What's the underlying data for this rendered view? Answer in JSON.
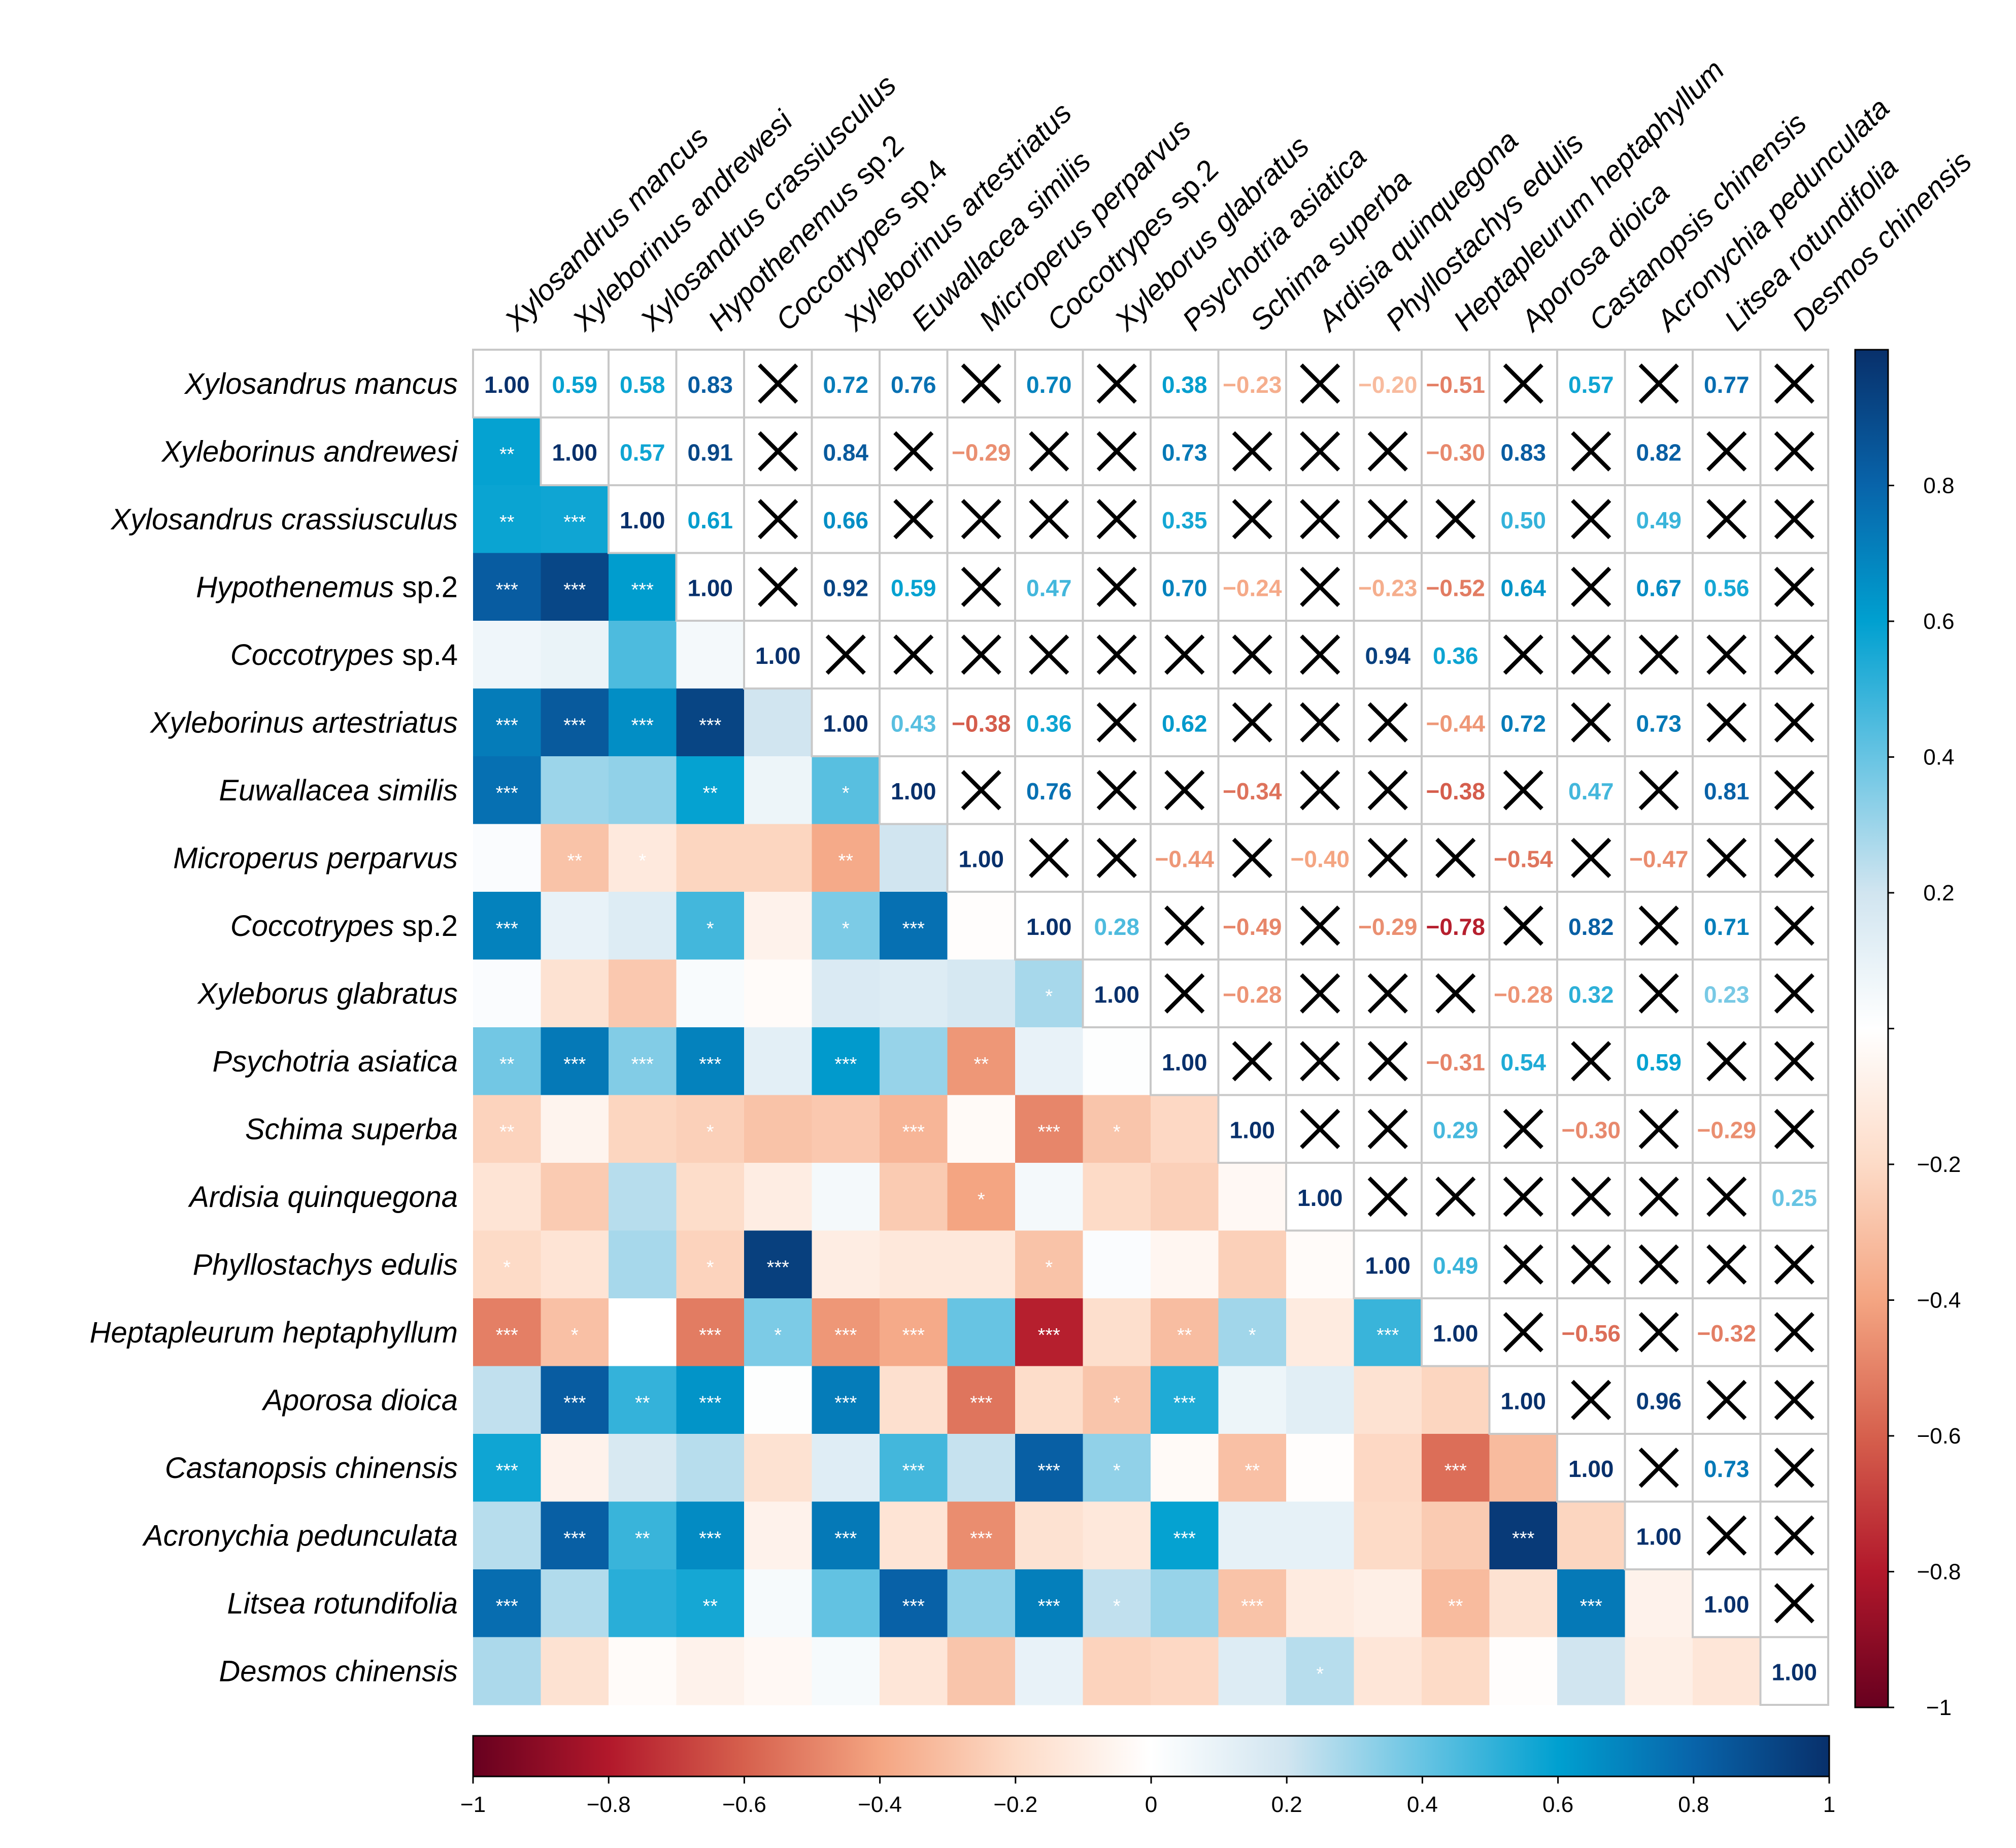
{
  "chart_data": {
    "type": "heatmap",
    "title": "",
    "species": [
      {
        "name": "Xylosandrus mancus",
        "upright": ""
      },
      {
        "name": "Xyleborinus andrewesi",
        "upright": ""
      },
      {
        "name": "Xylosandrus crassiusculus",
        "upright": ""
      },
      {
        "name": "Hypothenemus",
        "upright": " sp.2"
      },
      {
        "name": "Coccotrypes",
        "upright": " sp.4"
      },
      {
        "name": "Xyleborinus artestriatus",
        "upright": ""
      },
      {
        "name": "Euwallacea similis",
        "upright": ""
      },
      {
        "name": "Microperus perparvus",
        "upright": ""
      },
      {
        "name": "Coccotrypes",
        "upright": " sp.2"
      },
      {
        "name": "Xyleborus glabratus",
        "upright": ""
      },
      {
        "name": "Psychotria asiatica",
        "upright": ""
      },
      {
        "name": "Schima superba",
        "upright": ""
      },
      {
        "name": "Ardisia quinquegona",
        "upright": ""
      },
      {
        "name": "Phyllostachys edulis",
        "upright": ""
      },
      {
        "name": "Heptapleurum heptaphyllum",
        "upright": ""
      },
      {
        "name": "Aporosa dioica",
        "upright": ""
      },
      {
        "name": "Castanopsis chinensis",
        "upright": ""
      },
      {
        "name": "Acronychia pedunculata",
        "upright": ""
      },
      {
        "name": "Litsea rotundifolia",
        "upright": ""
      },
      {
        "name": "Desmos chinensis",
        "upright": ""
      }
    ],
    "upper_triangle": [
      [
        null,
        0.59,
        0.58,
        0.83,
        null,
        0.72,
        0.76,
        null,
        0.7,
        null,
        0.38,
        -0.23,
        null,
        -0.2,
        -0.51,
        null,
        0.57,
        null,
        0.77,
        null
      ],
      [
        null,
        null,
        0.57,
        0.91,
        null,
        0.84,
        null,
        -0.29,
        null,
        null,
        0.73,
        null,
        null,
        null,
        -0.3,
        0.83,
        null,
        0.82,
        null,
        null
      ],
      [
        null,
        null,
        null,
        0.61,
        null,
        0.66,
        null,
        null,
        null,
        null,
        0.35,
        null,
        null,
        null,
        null,
        0.5,
        null,
        0.49,
        null,
        null
      ],
      [
        null,
        null,
        null,
        null,
        null,
        0.92,
        0.59,
        null,
        0.47,
        null,
        0.7,
        -0.24,
        null,
        -0.23,
        -0.52,
        0.64,
        null,
        0.67,
        0.56,
        null
      ],
      [
        null,
        null,
        null,
        null,
        null,
        null,
        null,
        null,
        null,
        null,
        null,
        null,
        null,
        0.94,
        0.36,
        null,
        null,
        null,
        null,
        null
      ],
      [
        null,
        null,
        null,
        null,
        null,
        null,
        0.43,
        -0.38,
        0.36,
        null,
        0.62,
        null,
        null,
        null,
        -0.44,
        0.72,
        null,
        0.73,
        null,
        null
      ],
      [
        null,
        null,
        null,
        null,
        null,
        null,
        null,
        null,
        0.76,
        null,
        null,
        -0.34,
        null,
        null,
        -0.38,
        null,
        0.47,
        null,
        0.81,
        null
      ],
      [
        null,
        null,
        null,
        null,
        null,
        null,
        null,
        null,
        null,
        null,
        -0.44,
        null,
        -0.4,
        null,
        null,
        -0.54,
        null,
        -0.47,
        null,
        null
      ],
      [
        null,
        null,
        null,
        null,
        null,
        null,
        null,
        null,
        null,
        0.28,
        null,
        -0.49,
        null,
        -0.29,
        -0.78,
        null,
        0.82,
        null,
        0.71,
        null
      ],
      [
        null,
        null,
        null,
        null,
        null,
        null,
        null,
        null,
        null,
        null,
        null,
        -0.28,
        null,
        null,
        null,
        -0.28,
        0.32,
        null,
        0.23,
        null
      ],
      [
        null,
        null,
        null,
        null,
        null,
        null,
        null,
        null,
        null,
        null,
        null,
        null,
        null,
        null,
        -0.31,
        0.54,
        null,
        0.59,
        null,
        null
      ],
      [
        null,
        null,
        null,
        null,
        null,
        null,
        null,
        null,
        null,
        null,
        null,
        null,
        null,
        null,
        0.29,
        null,
        -0.3,
        null,
        -0.29,
        null
      ],
      [
        null,
        null,
        null,
        null,
        null,
        null,
        null,
        null,
        null,
        null,
        null,
        null,
        null,
        null,
        null,
        null,
        null,
        null,
        null,
        0.25
      ],
      [
        null,
        null,
        null,
        null,
        null,
        null,
        null,
        null,
        null,
        null,
        null,
        null,
        null,
        null,
        0.49,
        null,
        null,
        null,
        null,
        null
      ],
      [
        null,
        null,
        null,
        null,
        null,
        null,
        null,
        null,
        null,
        null,
        null,
        null,
        null,
        null,
        null,
        null,
        -0.56,
        null,
        -0.32,
        null
      ],
      [
        null,
        null,
        null,
        null,
        null,
        null,
        null,
        null,
        null,
        null,
        null,
        null,
        null,
        null,
        null,
        null,
        null,
        0.96,
        null,
        null
      ],
      [
        null,
        null,
        null,
        null,
        null,
        null,
        null,
        null,
        null,
        null,
        null,
        null,
        null,
        null,
        null,
        null,
        null,
        null,
        0.73,
        null
      ],
      [
        null,
        null,
        null,
        null,
        null,
        null,
        null,
        null,
        null,
        null,
        null,
        null,
        null,
        null,
        null,
        null,
        null,
        null,
        null,
        null
      ],
      [
        null,
        null,
        null,
        null,
        null,
        null,
        null,
        null,
        null,
        null,
        null,
        null,
        null,
        null,
        null,
        null,
        null,
        null,
        null,
        null
      ],
      [
        null,
        null,
        null,
        null,
        null,
        null,
        null,
        null,
        null,
        null,
        null,
        null,
        null,
        null,
        null,
        null,
        null,
        null,
        null,
        null
      ]
    ],
    "diagonal_label": "1.00",
    "lower_triangle": [
      [],
      [
        0.59
      ],
      [
        0.58,
        0.57
      ],
      [
        0.83,
        0.91,
        0.61
      ],
      [
        0.07,
        0.09,
        0.45,
        0.05
      ],
      [
        0.72,
        0.84,
        0.66,
        0.92,
        0.2
      ],
      [
        0.76,
        0.3,
        0.32,
        0.59,
        0.08,
        0.43
      ],
      [
        0.02,
        -0.29,
        -0.12,
        -0.22,
        -0.22,
        -0.38,
        0.2
      ],
      [
        0.7,
        0.1,
        0.15,
        0.47,
        -0.07,
        0.36,
        0.76,
        -0.01
      ],
      [
        0.02,
        -0.16,
        -0.27,
        0.03,
        -0.02,
        0.16,
        0.15,
        0.18,
        0.28
      ],
      [
        0.38,
        0.73,
        0.35,
        0.7,
        0.12,
        0.62,
        0.31,
        -0.44,
        0.1,
        0.01
      ],
      [
        -0.23,
        -0.06,
        -0.22,
        -0.24,
        -0.29,
        -0.27,
        -0.34,
        -0.03,
        -0.49,
        -0.28,
        -0.21
      ],
      [
        -0.15,
        -0.26,
        0.25,
        -0.19,
        -0.1,
        0.05,
        -0.26,
        -0.4,
        0.05,
        -0.2,
        -0.24,
        -0.04
      ],
      [
        -0.2,
        -0.15,
        0.28,
        -0.23,
        0.94,
        -0.1,
        -0.13,
        -0.13,
        -0.29,
        0.02,
        -0.05,
        -0.24,
        -0.02
      ],
      [
        -0.51,
        -0.3,
        0.0,
        -0.52,
        0.36,
        -0.44,
        -0.38,
        0.4,
        -0.78,
        -0.18,
        -0.31,
        0.29,
        -0.11,
        0.49
      ],
      [
        0.23,
        0.83,
        0.5,
        0.64,
        0.01,
        0.72,
        -0.17,
        -0.54,
        -0.19,
        -0.28,
        0.54,
        0.08,
        0.13,
        -0.16,
        -0.22
      ],
      [
        0.57,
        -0.07,
        0.17,
        0.25,
        -0.16,
        0.14,
        0.47,
        0.22,
        0.82,
        0.32,
        -0.03,
        -0.3,
        -0.01,
        -0.21,
        -0.56,
        -0.32
      ],
      [
        0.25,
        0.82,
        0.49,
        0.67,
        -0.07,
        0.73,
        -0.15,
        -0.47,
        -0.16,
        -0.13,
        0.59,
        0.11,
        0.11,
        -0.2,
        -0.26,
        0.96,
        -0.22
      ],
      [
        0.77,
        0.26,
        0.52,
        0.56,
        0.04,
        0.41,
        0.81,
        0.32,
        0.71,
        0.23,
        0.31,
        -0.29,
        -0.11,
        -0.09,
        -0.32,
        -0.16,
        0.73,
        -0.07
      ],
      [
        0.27,
        -0.16,
        -0.02,
        -0.07,
        -0.04,
        0.04,
        -0.14,
        -0.28,
        0.1,
        -0.23,
        -0.21,
        0.15,
        0.25,
        -0.14,
        -0.2,
        -0.01,
        0.2,
        -0.09,
        -0.14
      ]
    ],
    "significance": [
      [],
      [
        "**"
      ],
      [
        "**",
        "***"
      ],
      [
        "***",
        "***",
        "***"
      ],
      [
        "",
        "",
        "",
        ""
      ],
      [
        "***",
        "***",
        "***",
        "***",
        ""
      ],
      [
        "***",
        "",
        "",
        "**",
        "",
        "*"
      ],
      [
        "",
        "**",
        "*",
        "",
        "",
        "**",
        ""
      ],
      [
        "***",
        "",
        "",
        "*",
        "",
        "*",
        "***",
        ""
      ],
      [
        "",
        "",
        "",
        "",
        "",
        "",
        "",
        "",
        "*"
      ],
      [
        "**",
        "***",
        "***",
        "***",
        "",
        "***",
        "",
        "**",
        "",
        ""
      ],
      [
        "**",
        "",
        "",
        "*",
        "",
        "",
        "***",
        "",
        "***",
        "*",
        ""
      ],
      [
        "",
        "",
        "",
        "",
        "",
        "",
        "",
        "*",
        "",
        "",
        "",
        ""
      ],
      [
        "*",
        "",
        "",
        "*",
        "***",
        "",
        "",
        "",
        "*",
        "",
        "",
        "",
        ""
      ],
      [
        "***",
        "*",
        "",
        "***",
        "*",
        "***",
        "***",
        "",
        "***",
        "",
        "**",
        "*",
        "",
        "***"
      ],
      [
        "",
        "***",
        "**",
        "***",
        "",
        "***",
        "",
        "***",
        "",
        "*",
        "***",
        "",
        "",
        "",
        ""
      ],
      [
        "***",
        "",
        "",
        "",
        "",
        "",
        "***",
        "",
        "***",
        "*",
        "",
        "**",
        "",
        "",
        "***",
        ""
      ],
      [
        "",
        "***",
        "**",
        "***",
        "",
        "***",
        "",
        "***",
        "",
        "",
        "***",
        "",
        "",
        "",
        "",
        "***",
        ""
      ],
      [
        "***",
        "",
        "",
        "**",
        "",
        "",
        "***",
        "",
        "***",
        "*",
        "",
        "***",
        "",
        "",
        "**",
        "",
        "***",
        ""
      ],
      [
        "",
        "",
        "",
        "",
        "",
        "",
        "",
        "",
        "",
        "",
        "",
        "",
        "*",
        "",
        "",
        "",
        "",
        "",
        ""
      ]
    ],
    "colorbar_right": {
      "ticks": [
        "0.8",
        "0.6",
        "0.4",
        "0.2",
        "−0.2",
        "−0.4",
        "−0.6",
        "−0.8",
        "−1"
      ],
      "tick_values": [
        0.8,
        0.6,
        0.4,
        0.2,
        -0.2,
        -0.4,
        -0.6,
        -0.8,
        -1
      ]
    },
    "colorbar_bottom": {
      "ticks": [
        "−1",
        "−0.8",
        "−0.6",
        "−0.4",
        "−0.2",
        "0",
        "0.2",
        "0.4",
        "0.6",
        "0.8",
        "1"
      ],
      "tick_values": [
        -1,
        -0.8,
        -0.6,
        -0.4,
        -0.2,
        0,
        0.2,
        0.4,
        0.6,
        0.8,
        1
      ]
    },
    "scale_range": [
      -1,
      1
    ],
    "colors": {
      "strong_negative": "#67001f",
      "negative": "#d6604d",
      "neutral": "#ffffff",
      "positive": "#4393c3",
      "strong_positive": "#08306b",
      "mid_positive": "#00a0d0"
    }
  }
}
